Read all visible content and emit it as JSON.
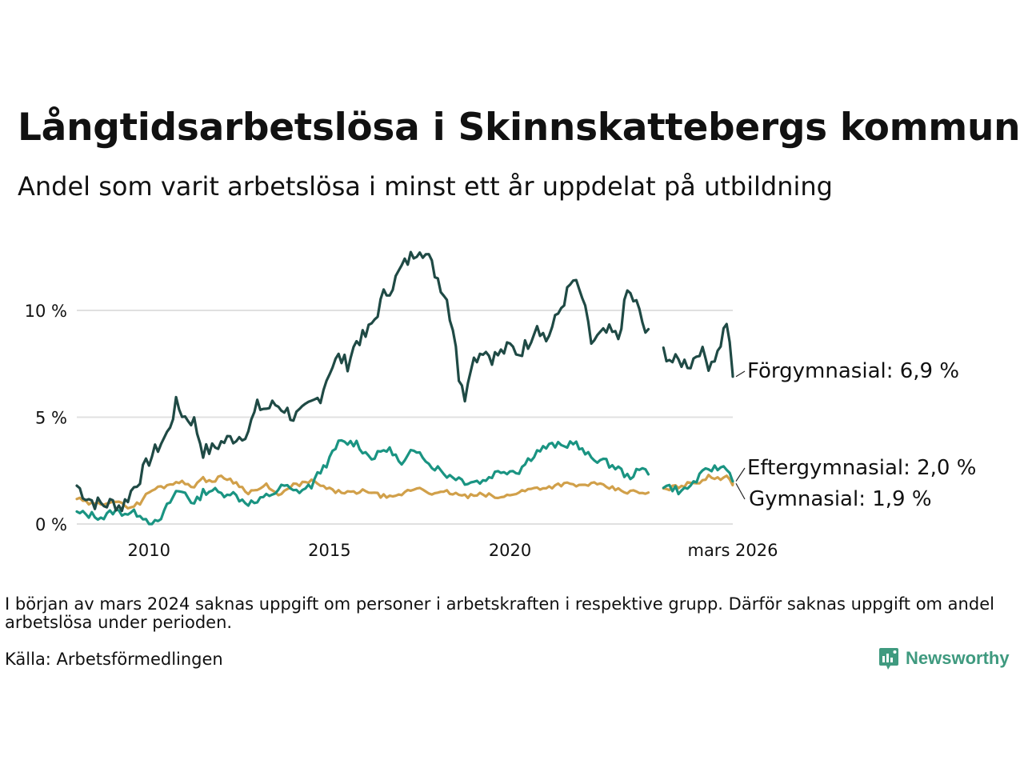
{
  "title": "Långtidsarbetslösa i Skinnskattebergs kommun",
  "subtitle": "Andel som varit arbetslösa i minst ett år uppdelat på utbildning",
  "note": "I början av mars 2024 saknas uppgift om personer i arbetskraften i respektive grupp. Därför saknas uppgift om andel arbetslösa under perioden.",
  "source": "Källa: Arbetsförmedlingen",
  "brand": {
    "name": "Newsworthy",
    "icon": "newsworthy-logo-icon"
  },
  "colors": {
    "forgymnasial": "#1f4a45",
    "eftergymnasial": "#1a9482",
    "gymnasial": "#d1a04a",
    "grid": "#e0e0e0"
  },
  "chart_data": {
    "type": "line",
    "x_start": 2008.0,
    "x_step": 0.08333,
    "gap": [
      2023.83,
      2024.25
    ],
    "xlim": [
      2008.0,
      2026.17
    ],
    "ylim": [
      0,
      13.5
    ],
    "x_ticks": [
      2010,
      2015,
      2020
    ],
    "x_tick_labels": [
      "2010",
      "2015",
      "2020"
    ],
    "x_end_label": "mars 2026",
    "y_ticks": [
      0,
      5,
      10
    ],
    "y_tick_labels": [
      "0 %",
      "5 %",
      "10 %"
    ],
    "series": [
      {
        "name": "Förgymnasial",
        "key": "forgymnasial",
        "end_label": "Förgymnasial: 6,9 %",
        "last_value": 6.9,
        "anchors": [
          [
            2008.0,
            1.8
          ],
          [
            2008.25,
            1.3
          ],
          [
            2008.5,
            1.0
          ],
          [
            2008.75,
            0.9
          ],
          [
            2009.0,
            1.0
          ],
          [
            2009.25,
            0.8
          ],
          [
            2009.5,
            1.5
          ],
          [
            2009.75,
            2.2
          ],
          [
            2010.0,
            3.0
          ],
          [
            2010.25,
            3.6
          ],
          [
            2010.5,
            4.2
          ],
          [
            2010.75,
            5.6
          ],
          [
            2011.0,
            5.0
          ],
          [
            2011.25,
            4.8
          ],
          [
            2011.5,
            3.4
          ],
          [
            2011.75,
            3.5
          ],
          [
            2012.0,
            3.8
          ],
          [
            2012.25,
            4.0
          ],
          [
            2012.5,
            4.1
          ],
          [
            2012.75,
            4.4
          ],
          [
            2013.0,
            5.5
          ],
          [
            2013.25,
            5.4
          ],
          [
            2013.5,
            5.6
          ],
          [
            2013.75,
            5.4
          ],
          [
            2014.0,
            5.0
          ],
          [
            2014.25,
            5.2
          ],
          [
            2014.5,
            5.6
          ],
          [
            2014.75,
            6.0
          ],
          [
            2015.0,
            7.2
          ],
          [
            2015.25,
            7.8
          ],
          [
            2015.5,
            7.5
          ],
          [
            2015.75,
            8.6
          ],
          [
            2016.0,
            8.8
          ],
          [
            2016.25,
            9.6
          ],
          [
            2016.5,
            10.7
          ],
          [
            2016.75,
            11.2
          ],
          [
            2017.0,
            12.0
          ],
          [
            2017.25,
            12.5
          ],
          [
            2017.5,
            13.0
          ],
          [
            2017.75,
            12.4
          ],
          [
            2018.0,
            11.5
          ],
          [
            2018.25,
            10.5
          ],
          [
            2018.5,
            8.5
          ],
          [
            2018.6,
            6.5
          ],
          [
            2018.75,
            6.0
          ],
          [
            2018.9,
            7.5
          ],
          [
            2019.25,
            8.2
          ],
          [
            2019.5,
            7.8
          ],
          [
            2019.75,
            8.0
          ],
          [
            2020.0,
            8.3
          ],
          [
            2020.25,
            8.0
          ],
          [
            2020.5,
            8.5
          ],
          [
            2020.75,
            9.4
          ],
          [
            2021.0,
            8.6
          ],
          [
            2021.25,
            9.5
          ],
          [
            2021.5,
            10.5
          ],
          [
            2021.75,
            11.4
          ],
          [
            2022.0,
            10.6
          ],
          [
            2022.25,
            8.5
          ],
          [
            2022.5,
            8.8
          ],
          [
            2022.75,
            9.0
          ],
          [
            2023.0,
            8.7
          ],
          [
            2023.25,
            10.9
          ],
          [
            2023.5,
            10.3
          ],
          [
            2023.75,
            9.0
          ],
          [
            2024.25,
            8.1
          ],
          [
            2024.5,
            7.6
          ],
          [
            2024.75,
            7.6
          ],
          [
            2025.0,
            7.5
          ],
          [
            2025.25,
            8.2
          ],
          [
            2025.5,
            7.5
          ],
          [
            2025.75,
            8.0
          ],
          [
            2026.0,
            9.5
          ],
          [
            2026.17,
            6.9
          ]
        ]
      },
      {
        "name": "Eftergymnasial",
        "key": "eftergymnasial",
        "end_label": "Eftergymnasial: 2,0 %",
        "last_value": 2.0,
        "anchors": [
          [
            2008.0,
            0.5
          ],
          [
            2008.5,
            0.4
          ],
          [
            2008.75,
            0.3
          ],
          [
            2009.0,
            0.6
          ],
          [
            2009.5,
            0.5
          ],
          [
            2009.75,
            0.5
          ],
          [
            2010.0,
            0.1
          ],
          [
            2010.25,
            0.0
          ],
          [
            2010.5,
            0.8
          ],
          [
            2010.75,
            1.5
          ],
          [
            2011.0,
            1.5
          ],
          [
            2011.25,
            0.9
          ],
          [
            2011.5,
            1.5
          ],
          [
            2011.75,
            1.6
          ],
          [
            2012.0,
            1.4
          ],
          [
            2012.25,
            1.5
          ],
          [
            2012.5,
            1.2
          ],
          [
            2012.75,
            1.0
          ],
          [
            2013.0,
            1.0
          ],
          [
            2013.25,
            1.3
          ],
          [
            2013.5,
            1.5
          ],
          [
            2013.75,
            1.8
          ],
          [
            2014.0,
            1.5
          ],
          [
            2014.25,
            1.6
          ],
          [
            2014.5,
            1.8
          ],
          [
            2014.75,
            2.5
          ],
          [
            2015.0,
            3.0
          ],
          [
            2015.25,
            3.8
          ],
          [
            2015.5,
            3.8
          ],
          [
            2015.75,
            3.8
          ],
          [
            2016.0,
            3.3
          ],
          [
            2016.25,
            3.1
          ],
          [
            2016.5,
            3.5
          ],
          [
            2016.75,
            3.4
          ],
          [
            2017.0,
            2.7
          ],
          [
            2017.25,
            3.3
          ],
          [
            2017.5,
            3.5
          ],
          [
            2017.75,
            2.8
          ],
          [
            2018.0,
            2.6
          ],
          [
            2018.25,
            2.3
          ],
          [
            2018.5,
            2.2
          ],
          [
            2018.75,
            2.0
          ],
          [
            2019.0,
            2.0
          ],
          [
            2019.25,
            2.0
          ],
          [
            2019.5,
            2.3
          ],
          [
            2019.75,
            2.5
          ],
          [
            2020.0,
            2.5
          ],
          [
            2020.25,
            2.5
          ],
          [
            2020.5,
            3.0
          ],
          [
            2020.75,
            3.4
          ],
          [
            2021.0,
            3.6
          ],
          [
            2021.25,
            3.7
          ],
          [
            2021.5,
            3.6
          ],
          [
            2021.75,
            3.9
          ],
          [
            2022.0,
            3.4
          ],
          [
            2022.25,
            3.1
          ],
          [
            2022.5,
            3.0
          ],
          [
            2022.75,
            2.8
          ],
          [
            2023.0,
            2.6
          ],
          [
            2023.25,
            2.2
          ],
          [
            2023.5,
            2.4
          ],
          [
            2023.75,
            2.6
          ],
          [
            2024.25,
            1.8
          ],
          [
            2024.5,
            1.7
          ],
          [
            2024.75,
            1.5
          ],
          [
            2025.0,
            1.8
          ],
          [
            2025.25,
            2.2
          ],
          [
            2025.5,
            2.6
          ],
          [
            2025.75,
            2.6
          ],
          [
            2026.0,
            2.7
          ],
          [
            2026.17,
            2.0
          ]
        ]
      },
      {
        "name": "Gymnasial",
        "key": "gymnasial",
        "end_label": "Gymnasial: 1,9 %",
        "last_value": 1.9,
        "anchors": [
          [
            2008.0,
            1.2
          ],
          [
            2008.25,
            1.0
          ],
          [
            2008.5,
            0.9
          ],
          [
            2008.75,
            1.0
          ],
          [
            2009.0,
            1.1
          ],
          [
            2009.25,
            0.9
          ],
          [
            2009.5,
            0.8
          ],
          [
            2009.75,
            1.0
          ],
          [
            2010.0,
            1.5
          ],
          [
            2010.25,
            1.7
          ],
          [
            2010.5,
            1.8
          ],
          [
            2010.75,
            2.0
          ],
          [
            2011.0,
            1.9
          ],
          [
            2011.25,
            1.8
          ],
          [
            2011.5,
            2.1
          ],
          [
            2011.75,
            2.0
          ],
          [
            2012.0,
            2.2
          ],
          [
            2012.25,
            2.1
          ],
          [
            2012.5,
            1.8
          ],
          [
            2012.75,
            1.5
          ],
          [
            2013.0,
            1.6
          ],
          [
            2013.25,
            1.8
          ],
          [
            2013.5,
            1.4
          ],
          [
            2013.75,
            1.5
          ],
          [
            2014.0,
            1.8
          ],
          [
            2014.25,
            1.9
          ],
          [
            2014.5,
            2.0
          ],
          [
            2014.75,
            1.8
          ],
          [
            2015.0,
            1.6
          ],
          [
            2015.25,
            1.5
          ],
          [
            2015.5,
            1.5
          ],
          [
            2015.75,
            1.4
          ],
          [
            2016.0,
            1.6
          ],
          [
            2016.25,
            1.4
          ],
          [
            2016.5,
            1.3
          ],
          [
            2016.75,
            1.2
          ],
          [
            2017.0,
            1.4
          ],
          [
            2017.25,
            1.6
          ],
          [
            2017.5,
            1.7
          ],
          [
            2017.75,
            1.5
          ],
          [
            2018.0,
            1.4
          ],
          [
            2018.25,
            1.5
          ],
          [
            2018.5,
            1.4
          ],
          [
            2018.75,
            1.3
          ],
          [
            2019.0,
            1.3
          ],
          [
            2019.25,
            1.4
          ],
          [
            2019.5,
            1.3
          ],
          [
            2019.75,
            1.2
          ],
          [
            2020.0,
            1.4
          ],
          [
            2020.25,
            1.5
          ],
          [
            2020.5,
            1.6
          ],
          [
            2020.75,
            1.7
          ],
          [
            2021.0,
            1.7
          ],
          [
            2021.25,
            1.8
          ],
          [
            2021.5,
            1.9
          ],
          [
            2021.75,
            1.8
          ],
          [
            2022.0,
            1.8
          ],
          [
            2022.25,
            1.9
          ],
          [
            2022.5,
            1.8
          ],
          [
            2022.75,
            1.7
          ],
          [
            2023.0,
            1.6
          ],
          [
            2023.25,
            1.5
          ],
          [
            2023.5,
            1.5
          ],
          [
            2023.75,
            1.4
          ],
          [
            2024.25,
            1.6
          ],
          [
            2024.5,
            1.7
          ],
          [
            2024.75,
            1.8
          ],
          [
            2025.0,
            1.9
          ],
          [
            2025.25,
            2.0
          ],
          [
            2025.5,
            2.2
          ],
          [
            2025.75,
            2.1
          ],
          [
            2026.0,
            2.3
          ],
          [
            2026.17,
            1.9
          ]
        ]
      }
    ]
  }
}
